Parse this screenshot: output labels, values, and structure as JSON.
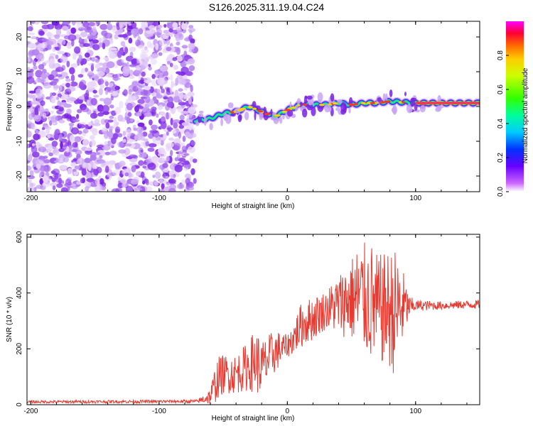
{
  "title": "S126.2025.311.19.04.C24",
  "chart_data": [
    {
      "type": "heatmap",
      "name": "spectrogram",
      "xlabel": "Height of straight line (km)",
      "ylabel": "Frequency (Hz)",
      "xlim": [
        -203,
        150
      ],
      "ylim": [
        -24.5,
        24.5
      ],
      "xticks": [
        -200,
        -100,
        0,
        100
      ],
      "yticks": [
        -20,
        -10,
        0,
        10,
        20
      ],
      "noise_region_x": [
        -203,
        -72
      ],
      "signal_track": {
        "x": [
          -72,
          -60,
          -50,
          -40,
          -30,
          -20,
          -10,
          0,
          10,
          20,
          30,
          40,
          50,
          60,
          70,
          80,
          90,
          100,
          110,
          120,
          130,
          140,
          150
        ],
        "freq": [
          -4,
          -3.5,
          -2,
          -1.5,
          0,
          -1.5,
          -3,
          -1,
          0.5,
          0.5,
          0.5,
          1,
          0.5,
          1,
          1,
          1.5,
          1.2,
          1,
          1,
          1,
          1,
          1,
          1
        ]
      },
      "colorbar": {
        "label": "Normalized spectral amplitude",
        "range": [
          0,
          1
        ],
        "ticks": [
          "0.0",
          "0.2",
          "0.4",
          "0.6",
          "0.8"
        ],
        "tick_values": [
          0,
          0.2,
          0.4,
          0.6,
          0.8
        ]
      }
    },
    {
      "type": "line",
      "name": "snr",
      "xlabel": "Height of straight line (km)",
      "ylabel": "SNR (10 * v/v)",
      "xlim": [
        -203,
        150
      ],
      "ylim": [
        0,
        610
      ],
      "xticks": [
        -200,
        -100,
        0,
        100
      ],
      "yticks": [
        0,
        200,
        400,
        600
      ],
      "color": "#e83a30",
      "envelope": {
        "x": [
          -203,
          -70,
          -60,
          -55,
          -50,
          -40,
          -30,
          -25,
          -20,
          -10,
          0,
          5,
          10,
          20,
          30,
          40,
          50,
          55,
          60,
          65,
          70,
          75,
          80,
          85,
          90,
          95,
          100,
          120,
          150
        ],
        "mean": [
          10,
          12,
          30,
          90,
          110,
          110,
          140,
          160,
          130,
          190,
          210,
          240,
          280,
          310,
          340,
          360,
          380,
          380,
          380,
          370,
          340,
          340,
          340,
          330,
          350,
          350,
          355,
          355,
          360
        ],
        "amp": [
          5,
          6,
          30,
          80,
          70,
          70,
          90,
          120,
          100,
          80,
          40,
          60,
          80,
          80,
          70,
          110,
          150,
          200,
          200,
          220,
          200,
          200,
          220,
          230,
          140,
          40,
          20,
          15,
          15
        ]
      }
    }
  ]
}
